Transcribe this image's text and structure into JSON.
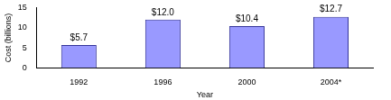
{
  "chart_data": {
    "type": "bar",
    "x_label": "Year",
    "y_label": "Cost (billions)",
    "categories": [
      "1992",
      "1996",
      "2000",
      "2004*"
    ],
    "values": [
      5.7,
      12.0,
      10.4,
      12.7
    ],
    "value_labels": [
      "$5.7",
      "$12.0",
      "$10.4",
      "$12.7"
    ],
    "data_labels": true,
    "color": "#9999ff",
    "ylim": [
      0,
      15
    ],
    "yticks": [
      0,
      5,
      10,
      15
    ],
    "grid": false
  }
}
